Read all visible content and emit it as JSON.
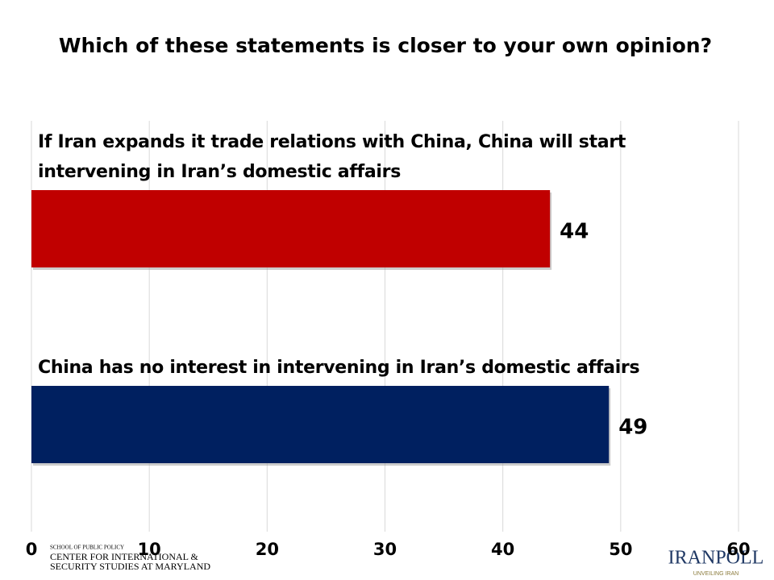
{
  "chart_data": {
    "type": "barh",
    "title": "Which of these statements is closer to your own opinion?",
    "categories": [
      "If Iran expands it trade relations with China, China will start intervening in Iran’s domestic affairs",
      "China has no interest in intervening in Iran’s domestic affairs"
    ],
    "series": [
      {
        "colors": [
          "#c00000",
          "#002060"
        ],
        "values": [
          44,
          49
        ]
      }
    ],
    "xlim": [
      0,
      60
    ],
    "xticks": [
      0,
      10,
      20,
      30,
      40,
      50,
      60
    ],
    "grid": true
  },
  "logos": {
    "left": [
      "SCHOOL OF PUBLIC POLICY",
      "CENTER FOR INTERNATIONAL &",
      "SECURITY STUDIES AT MARYLAND"
    ],
    "right": {
      "name": "IRANPOLL",
      "tagline": "UNVEILING IRAN"
    }
  }
}
